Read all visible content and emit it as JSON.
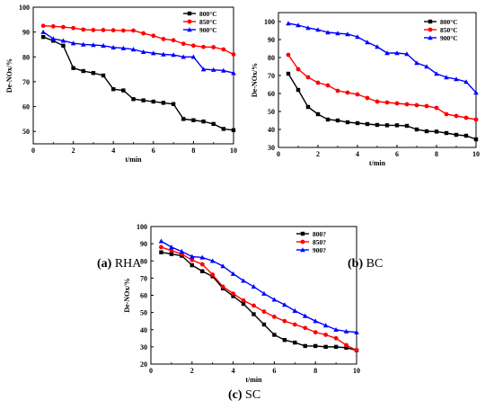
{
  "captions": [
    {
      "letter": "(a)",
      "text": "RHA"
    },
    {
      "letter": "(b)",
      "text": "BC"
    },
    {
      "letter": "(c)",
      "text": "SC"
    }
  ],
  "chart_data": [
    {
      "type": "line",
      "xlabel": "t/min",
      "ylabel": "De-NOx/%",
      "xlim": [
        0,
        10
      ],
      "ylim": [
        45,
        100
      ],
      "xticks": [
        0,
        2,
        4,
        6,
        8,
        10
      ],
      "yticks": [
        50,
        60,
        70,
        80,
        90,
        100
      ],
      "legend_position": "top-right",
      "series": [
        {
          "name": "800°C",
          "color": "#000000",
          "marker": "square",
          "x": [
            0.5,
            1,
            1.5,
            2,
            2.5,
            3,
            3.5,
            4,
            4.5,
            5,
            5.5,
            6,
            6.5,
            7,
            7.5,
            8,
            8.5,
            9,
            9.5,
            10
          ],
          "y": [
            88,
            86.5,
            84.5,
            75.5,
            74.3,
            73.5,
            72.5,
            67,
            66.5,
            63,
            62.5,
            62,
            61.5,
            61,
            55,
            54.5,
            54,
            53,
            51,
            50.5
          ]
        },
        {
          "name": "850°C",
          "color": "#ff0000",
          "marker": "circle",
          "x": [
            0.5,
            1,
            1.5,
            2,
            2.5,
            3,
            3.5,
            4,
            4.5,
            5,
            5.5,
            6,
            6.5,
            7,
            7.5,
            8,
            8.5,
            9,
            9.5,
            10
          ],
          "y": [
            92.5,
            92.3,
            92,
            91.6,
            91,
            90.8,
            90.8,
            90.7,
            90.6,
            90.6,
            89.5,
            88.5,
            87.2,
            86.7,
            85.3,
            84.5,
            84,
            83.9,
            83,
            81
          ]
        },
        {
          "name": "900°C",
          "color": "#0000ff",
          "marker": "triangle",
          "x": [
            0.5,
            1,
            1.5,
            2,
            2.5,
            3,
            3.5,
            4,
            4.5,
            5,
            5.5,
            6,
            6.5,
            7,
            7.5,
            8,
            8.5,
            9,
            9.5,
            10
          ],
          "y": [
            90,
            87.3,
            86.5,
            85.5,
            85,
            84.8,
            84.5,
            83.8,
            83.5,
            83,
            82,
            81.5,
            81,
            80.8,
            80,
            80,
            75,
            74.8,
            74.5,
            73.5
          ]
        }
      ]
    },
    {
      "type": "line",
      "xlabel": "t/min",
      "ylabel": "De-NOx/%",
      "xlim": [
        0,
        10
      ],
      "ylim": [
        30,
        105
      ],
      "xticks": [
        0,
        2,
        4,
        6,
        8,
        10
      ],
      "yticks": [
        30,
        40,
        50,
        60,
        70,
        80,
        90,
        100
      ],
      "legend_position": "top-right",
      "series": [
        {
          "name": "800°C",
          "color": "#000000",
          "marker": "square",
          "x": [
            0.5,
            1,
            1.5,
            2,
            2.5,
            3,
            3.5,
            4,
            4.5,
            5,
            5.5,
            6,
            6.5,
            7,
            7.5,
            8,
            8.5,
            9,
            9.5,
            10
          ],
          "y": [
            71,
            62,
            52.5,
            48.5,
            45.5,
            45,
            44,
            43.5,
            43,
            42.5,
            42.3,
            42.3,
            42,
            40,
            39,
            38.8,
            38,
            37,
            36.5,
            34.5
          ]
        },
        {
          "name": "850°C",
          "color": "#ff0000",
          "marker": "circle",
          "x": [
            0.5,
            1,
            1.5,
            2,
            2.5,
            3,
            3.5,
            4,
            4.5,
            5,
            5.5,
            6,
            6.5,
            7,
            7.5,
            8,
            8.5,
            9,
            9.5,
            10
          ],
          "y": [
            81.5,
            73.5,
            69,
            66,
            64.5,
            61.5,
            60.5,
            59.5,
            57.5,
            55.5,
            55,
            54.5,
            54,
            53.5,
            53,
            52,
            48.5,
            47.5,
            46.5,
            45.5
          ]
        },
        {
          "name": "900°C",
          "color": "#0000ff",
          "marker": "triangle",
          "x": [
            0.5,
            1,
            1.5,
            2,
            2.5,
            3,
            3.5,
            4,
            4.5,
            5,
            5.5,
            6,
            6.5,
            7,
            7.5,
            8,
            8.5,
            9,
            9.5,
            10
          ],
          "y": [
            99,
            98,
            96.5,
            95.5,
            94,
            93.5,
            93,
            91.5,
            88.5,
            86,
            82.5,
            82.5,
            82,
            77,
            75,
            71,
            69,
            68,
            66.5,
            60.5
          ]
        }
      ]
    },
    {
      "type": "line",
      "xlabel": "t/min",
      "ylabel": "De-NOx/%",
      "xlim": [
        0,
        10
      ],
      "ylim": [
        20,
        100
      ],
      "xticks": [
        0,
        2,
        4,
        6,
        8,
        10
      ],
      "yticks": [
        20,
        30,
        40,
        50,
        60,
        70,
        80,
        90,
        100
      ],
      "legend_position": "top-right",
      "series": [
        {
          "name": "800?",
          "color": "#000000",
          "marker": "square",
          "x": [
            0.5,
            1,
            1.5,
            2,
            2.5,
            3,
            3.5,
            4,
            4.5,
            5,
            5.5,
            6,
            6.5,
            7,
            7.5,
            8,
            8.5,
            9,
            9.5,
            10
          ],
          "y": [
            85,
            84,
            83,
            77.5,
            74,
            71,
            64,
            59.5,
            55,
            49,
            43,
            37,
            34,
            32.5,
            30.5,
            30.5,
            30,
            30,
            29.5,
            28
          ]
        },
        {
          "name": "850?",
          "color": "#ff0000",
          "marker": "circle",
          "x": [
            0.5,
            1,
            1.5,
            2,
            2.5,
            3,
            3.5,
            4,
            4.5,
            5,
            5.5,
            6,
            6.5,
            7,
            7.5,
            8,
            8.5,
            9,
            9.5,
            10
          ],
          "y": [
            88,
            86,
            84,
            80.5,
            78,
            72,
            65,
            61,
            57,
            54,
            50.5,
            47.5,
            45,
            43,
            41,
            38.5,
            37,
            35,
            31,
            28
          ]
        },
        {
          "name": "900?",
          "color": "#0000ff",
          "marker": "triangle",
          "x": [
            0.5,
            1,
            1.5,
            2,
            2.5,
            3,
            3.5,
            4,
            4.5,
            5,
            5.5,
            6,
            6.5,
            7,
            7.5,
            8,
            8.5,
            9,
            9.5,
            10
          ],
          "y": [
            91.5,
            88,
            85.5,
            82.5,
            82,
            80,
            77,
            72.5,
            68.5,
            65,
            61,
            57.5,
            54.5,
            51,
            48,
            45,
            42.5,
            40,
            39,
            38.5
          ]
        }
      ]
    }
  ]
}
